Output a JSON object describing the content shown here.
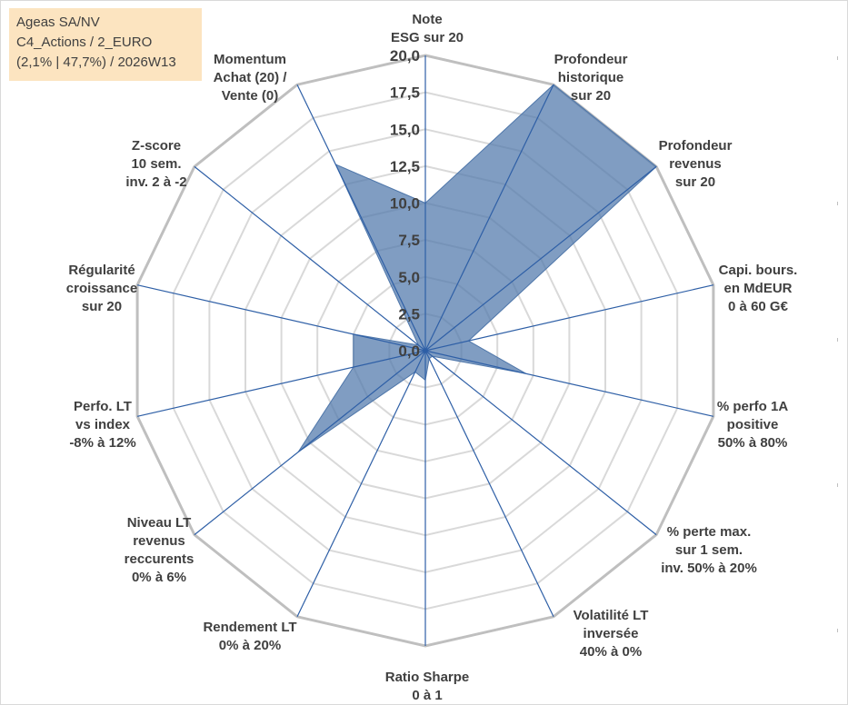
{
  "info_box": {
    "line1": "Ageas SA/NV",
    "line2": "C4_Actions / 2_EURO",
    "line3": "(2,1% | 47,7%) / 2026W13"
  },
  "chart_data": {
    "type": "radar",
    "title": "",
    "rlim": [
      0,
      20
    ],
    "ticks": [
      "0,0",
      "2,5",
      "5,0",
      "7,5",
      "10,0",
      "12,5",
      "15,0",
      "17,5",
      "20,0"
    ],
    "grid": true,
    "axes": [
      [
        "Note",
        "ESG sur 20"
      ],
      [
        "Profondeur",
        "historique",
        "sur 20"
      ],
      [
        "Profondeur",
        "revenus",
        "sur 20"
      ],
      [
        "Capi. bours.",
        "en MdEUR",
        "0 à 60 G€"
      ],
      [
        "% perfo 1A",
        "positive",
        "50% à 80%"
      ],
      [
        "% perte max.",
        "sur 1 sem.",
        "inv. 50% à 20%"
      ],
      [
        "Volatilité LT",
        "inversée",
        "40% à 0%"
      ],
      [
        "Ratio Sharpe",
        "0 à 1"
      ],
      [
        "Rendement LT",
        "0% à 20%"
      ],
      [
        "Niveau LT",
        "revenus",
        "reccurents",
        "0% à 6%"
      ],
      [
        "Perfo. LT",
        "vs index",
        "-8% à 12%"
      ],
      [
        "Régularité",
        "croissance",
        "sur 20"
      ],
      [
        "Z-score",
        "10 sem.",
        "inv. 2 à -2"
      ],
      [
        "Momentum",
        "Achat (20) /",
        "Vente (0)"
      ]
    ],
    "values": [
      10.0,
      20.0,
      20.0,
      3.0,
      7.0,
      0.6,
      0.6,
      2.0,
      1.6,
      11.0,
      5.0,
      5.0,
      0.6,
      14.0
    ],
    "colors": {
      "fill": "#4f77aa",
      "fill_opacity": 0.72,
      "spoke": "#2e5fa6",
      "grid": "#d9d9d9",
      "outer": "#bfbfbf",
      "text": "#404040",
      "box": "#fce4c0"
    }
  }
}
